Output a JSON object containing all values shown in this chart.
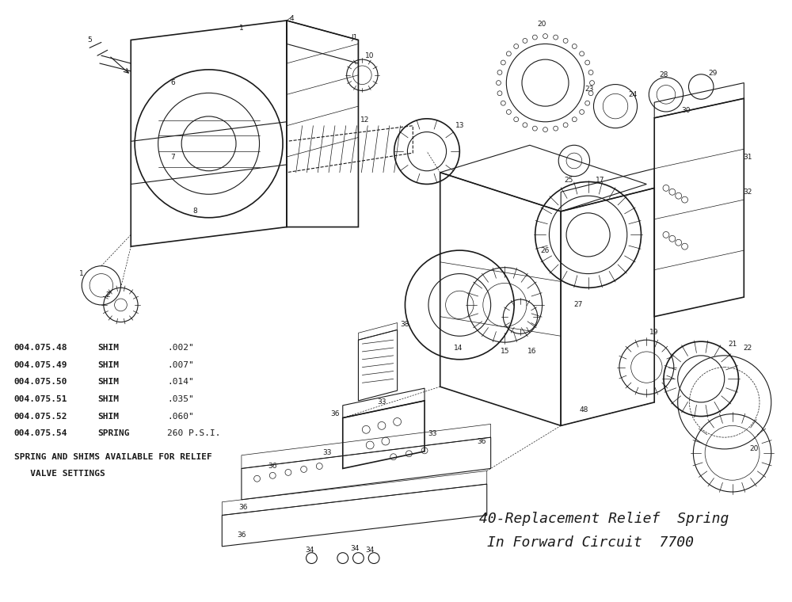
{
  "bg_color": "#ffffff",
  "ink": "#1a1a1a",
  "parts_list": [
    {
      "part_no": "004.075.48",
      "type": "SHIM",
      "spec": ".002\""
    },
    {
      "part_no": "004.075.49",
      "type": "SHIM",
      "spec": ".007\""
    },
    {
      "part_no": "004.075.50",
      "type": "SHIM",
      "spec": ".014\""
    },
    {
      "part_no": "004.075.51",
      "type": "SHIM",
      "spec": ".035\""
    },
    {
      "part_no": "004.075.52",
      "type": "SHIM",
      "spec": ".060\""
    },
    {
      "part_no": "004.075.54",
      "type": "SPRING",
      "spec": "260 P.S.I."
    }
  ],
  "note_line1": "SPRING AND SHIMS AVAILABLE FOR RELIEF",
  "note_line2": "   VALVE SETTINGS",
  "caption_line1": "40-Replacement Relief  Spring",
  "caption_line2": "In Forward Circuit  7700",
  "figsize": [
    10.0,
    7.6
  ],
  "dpi": 100,
  "xlim": [
    0,
    1000
  ],
  "ylim": [
    760,
    0
  ]
}
